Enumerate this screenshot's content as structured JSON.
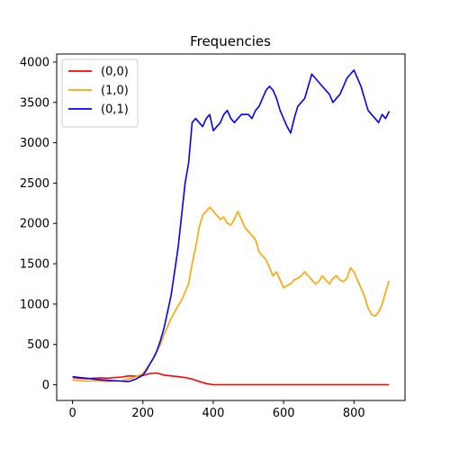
{
  "chart_data": {
    "type": "line",
    "title": "Frequencies",
    "xlabel": "",
    "ylabel": "",
    "xlim": [
      -45,
      945
    ],
    "ylim": [
      -195,
      4100
    ],
    "xticks": [
      0,
      200,
      400,
      600,
      800
    ],
    "yticks": [
      0,
      500,
      1000,
      1500,
      2000,
      2500,
      3000,
      3500,
      4000
    ],
    "grid": false,
    "legend_position": "top-left",
    "series": [
      {
        "name": "(0,0)",
        "color": "#ff0000",
        "x": [
          0,
          20,
          40,
          60,
          80,
          100,
          120,
          140,
          160,
          180,
          200,
          220,
          240,
          260,
          280,
          300,
          320,
          340,
          360,
          380,
          400,
          450,
          500,
          600,
          700,
          800,
          900
        ],
        "y": [
          90,
          80,
          75,
          80,
          85,
          80,
          90,
          95,
          110,
          105,
          115,
          140,
          145,
          120,
          110,
          100,
          90,
          70,
          40,
          15,
          0,
          0,
          0,
          0,
          0,
          0,
          0
        ]
      },
      {
        "name": "(1,0)",
        "color": "#ffa500",
        "x": [
          0,
          20,
          40,
          60,
          80,
          100,
          120,
          140,
          160,
          180,
          200,
          210,
          220,
          230,
          240,
          250,
          260,
          270,
          280,
          290,
          300,
          310,
          320,
          330,
          340,
          350,
          360,
          370,
          380,
          390,
          400,
          410,
          420,
          430,
          440,
          450,
          460,
          470,
          480,
          490,
          500,
          510,
          520,
          530,
          540,
          550,
          560,
          570,
          580,
          590,
          600,
          610,
          620,
          630,
          640,
          650,
          660,
          670,
          680,
          690,
          700,
          710,
          720,
          730,
          740,
          750,
          760,
          770,
          780,
          790,
          800,
          810,
          820,
          830,
          840,
          850,
          860,
          870,
          880,
          890,
          900
        ],
        "y": [
          60,
          50,
          45,
          50,
          45,
          40,
          45,
          50,
          70,
          100,
          140,
          200,
          260,
          330,
          420,
          500,
          620,
          720,
          820,
          900,
          980,
          1050,
          1150,
          1250,
          1500,
          1700,
          1950,
          2100,
          2150,
          2200,
          2150,
          2100,
          2050,
          2080,
          2000,
          1980,
          2050,
          2150,
          2050,
          1950,
          1900,
          1850,
          1800,
          1650,
          1600,
          1550,
          1450,
          1350,
          1400,
          1300,
          1200,
          1230,
          1250,
          1300,
          1320,
          1350,
          1400,
          1350,
          1300,
          1250,
          1280,
          1350,
          1300,
          1250,
          1320,
          1350,
          1300,
          1280,
          1320,
          1450,
          1400,
          1300,
          1200,
          1100,
          950,
          870,
          850,
          900,
          1000,
          1150,
          1290
        ]
      },
      {
        "name": "(0,1)",
        "color": "#0000ff",
        "x": [
          0,
          20,
          40,
          60,
          80,
          100,
          120,
          140,
          160,
          180,
          200,
          210,
          220,
          230,
          240,
          250,
          260,
          270,
          280,
          290,
          300,
          310,
          320,
          330,
          340,
          350,
          360,
          370,
          380,
          390,
          400,
          410,
          420,
          430,
          440,
          450,
          460,
          470,
          480,
          490,
          500,
          510,
          520,
          530,
          540,
          550,
          560,
          570,
          580,
          590,
          600,
          610,
          620,
          630,
          640,
          650,
          660,
          670,
          680,
          690,
          700,
          710,
          720,
          730,
          740,
          750,
          760,
          770,
          780,
          790,
          800,
          810,
          820,
          830,
          840,
          850,
          860,
          870,
          880,
          890,
          900
        ],
        "y": [
          100,
          90,
          80,
          70,
          60,
          55,
          50,
          45,
          40,
          70,
          120,
          180,
          260,
          330,
          420,
          550,
          700,
          900,
          1100,
          1400,
          1700,
          2100,
          2500,
          2750,
          3250,
          3300,
          3250,
          3200,
          3300,
          3350,
          3150,
          3200,
          3250,
          3350,
          3400,
          3300,
          3250,
          3300,
          3350,
          3350,
          3350,
          3300,
          3400,
          3450,
          3550,
          3650,
          3700,
          3650,
          3550,
          3400,
          3300,
          3200,
          3120,
          3300,
          3450,
          3500,
          3550,
          3700,
          3850,
          3800,
          3750,
          3700,
          3650,
          3600,
          3500,
          3550,
          3600,
          3700,
          3800,
          3850,
          3900,
          3800,
          3700,
          3550,
          3400,
          3350,
          3300,
          3250,
          3350,
          3300,
          3390
        ]
      }
    ]
  }
}
